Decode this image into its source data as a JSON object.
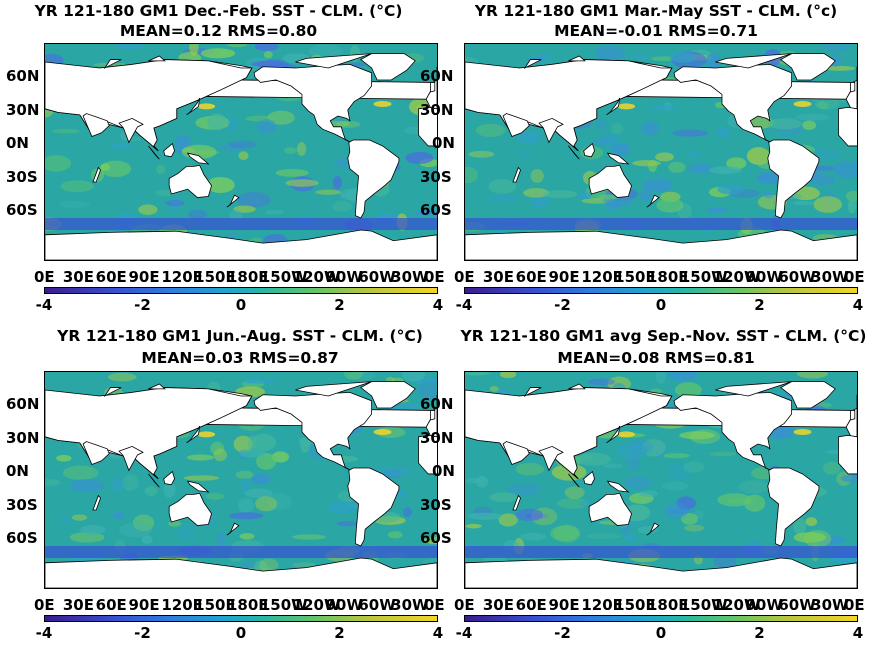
{
  "panels": [
    {
      "title1": "YR 121-180 GM1  Dec.-Feb. SST - CLM. (°C)",
      "title2": "MEAN=0.12   RMS=0.80"
    },
    {
      "title1": "YR 121-180 GM1 Mar.-May SST - CLM. (°c)",
      "title2": "MEAN=-0.01   RMS=0.71"
    },
    {
      "title1": "YR 121-180 GM1 Jun.-Aug. SST - CLM. (°C)",
      "title2": "MEAN=0.03   RMS=0.87"
    },
    {
      "title1": "YR 121-180 GM1 avg Sep.-Nov. SST - CLM. (°C)",
      "title2": "MEAN=0.08   RMS=0.81"
    }
  ],
  "lat_labels": [
    "60N",
    "30N",
    "0N",
    "30S",
    "60S"
  ],
  "lon_labels": [
    "0E",
    "30E",
    "60E",
    "90E",
    "120E",
    "150E",
    "180E",
    "150W",
    "120W",
    "90W",
    "60W",
    "30W",
    "0E"
  ],
  "colorbar": {
    "ticks": [
      "-4",
      "-2",
      "0",
      "2",
      "4"
    ],
    "min": -4,
    "max": 4,
    "colormap": "parula"
  },
  "colors": {
    "ocean_base": "#2aa7a5",
    "land": "#ffffff",
    "warm": "#f2d52a",
    "cold": "#3850d4"
  }
}
